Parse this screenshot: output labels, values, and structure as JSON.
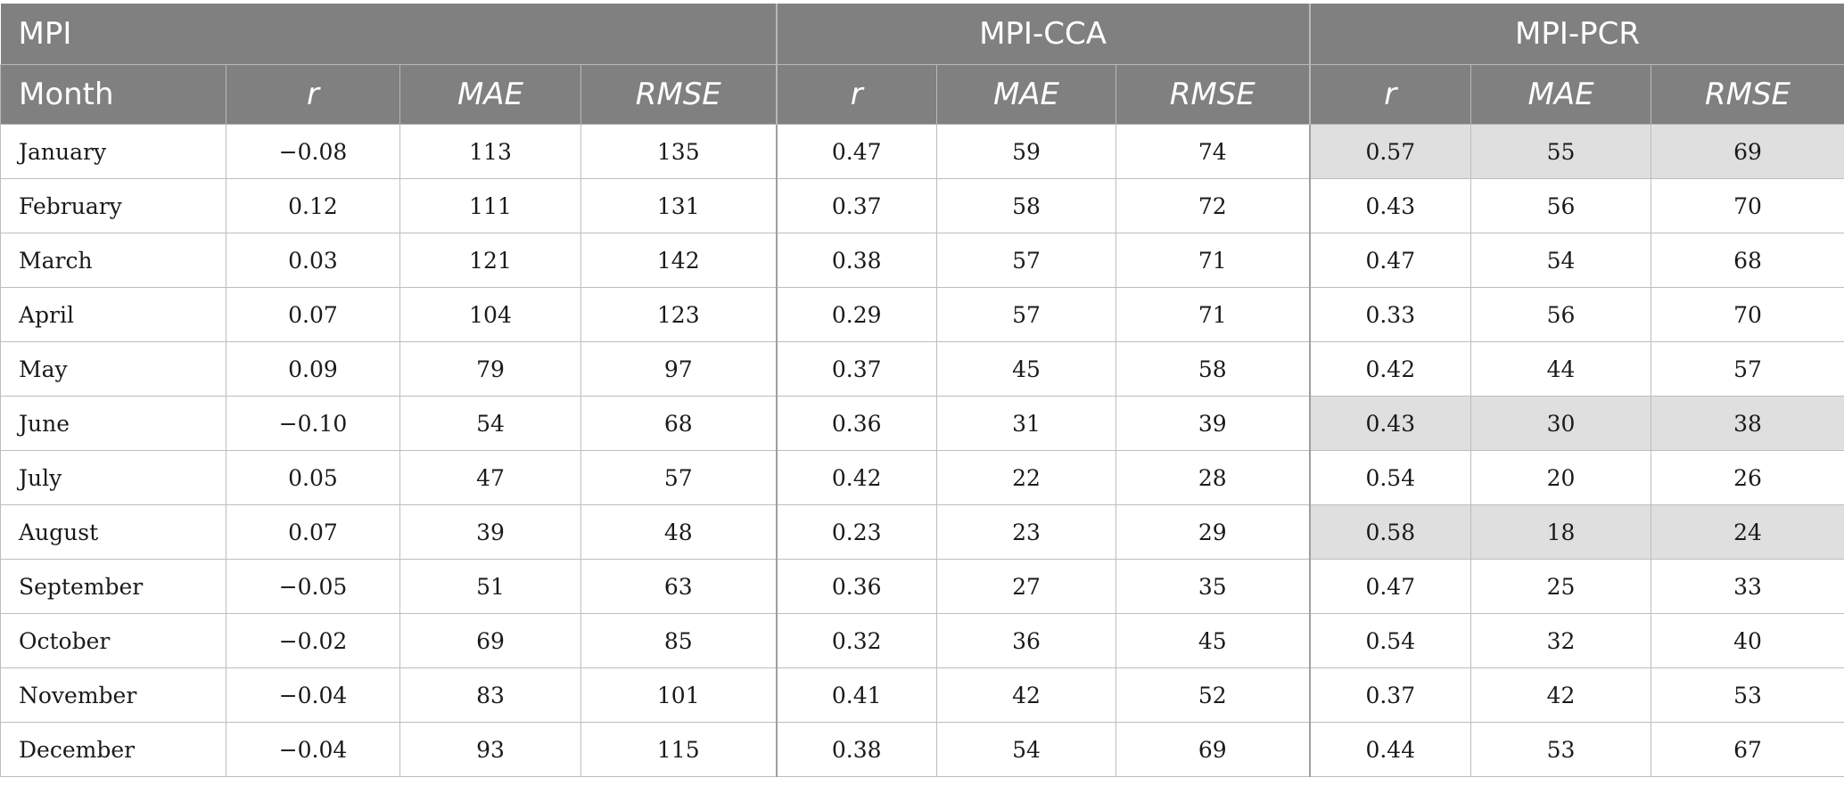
{
  "header": {
    "groups": [
      "MPI",
      "MPI-CCA",
      "MPI-PCR"
    ],
    "columns": [
      "Month",
      "r",
      "MAE",
      "RMSE",
      "r",
      "MAE",
      "RMSE",
      "r",
      "MAE",
      "RMSE"
    ]
  },
  "rows": [
    {
      "month": "January",
      "cells": [
        "−0.08",
        "113",
        "135",
        "0.47",
        "59",
        "74",
        "0.57",
        "55",
        "69"
      ],
      "highlight": true
    },
    {
      "month": "February",
      "cells": [
        "0.12",
        "111",
        "131",
        "0.37",
        "58",
        "72",
        "0.43",
        "56",
        "70"
      ],
      "highlight": false
    },
    {
      "month": "March",
      "cells": [
        "0.03",
        "121",
        "142",
        "0.38",
        "57",
        "71",
        "0.47",
        "54",
        "68"
      ],
      "highlight": false
    },
    {
      "month": "April",
      "cells": [
        "0.07",
        "104",
        "123",
        "0.29",
        "57",
        "71",
        "0.33",
        "56",
        "70"
      ],
      "highlight": false
    },
    {
      "month": "May",
      "cells": [
        "0.09",
        "79",
        "97",
        "0.37",
        "45",
        "58",
        "0.42",
        "44",
        "57"
      ],
      "highlight": false
    },
    {
      "month": "June",
      "cells": [
        "−0.10",
        "54",
        "68",
        "0.36",
        "31",
        "39",
        "0.43",
        "30",
        "38"
      ],
      "highlight": true
    },
    {
      "month": "July",
      "cells": [
        "0.05",
        "47",
        "57",
        "0.42",
        "22",
        "28",
        "0.54",
        "20",
        "26"
      ],
      "highlight": false
    },
    {
      "month": "August",
      "cells": [
        "0.07",
        "39",
        "48",
        "0.23",
        "23",
        "29",
        "0.58",
        "18",
        "24"
      ],
      "highlight": true
    },
    {
      "month": "September",
      "cells": [
        "−0.05",
        "51",
        "63",
        "0.36",
        "27",
        "35",
        "0.47",
        "25",
        "33"
      ],
      "highlight": false
    },
    {
      "month": "October",
      "cells": [
        "−0.02",
        "69",
        "85",
        "0.32",
        "36",
        "45",
        "0.54",
        "32",
        "40"
      ],
      "highlight": false
    },
    {
      "month": "November",
      "cells": [
        "−0.04",
        "83",
        "101",
        "0.41",
        "42",
        "52",
        "0.37",
        "42",
        "53"
      ],
      "highlight": false
    },
    {
      "month": "December",
      "cells": [
        "−0.04",
        "93",
        "115",
        "0.38",
        "54",
        "69",
        "0.44",
        "53",
        "67"
      ],
      "highlight": false
    }
  ],
  "colors": {
    "header_bg": "#808080",
    "highlight_bg": "#e0dfe0",
    "grid": "#bdbdbd"
  }
}
